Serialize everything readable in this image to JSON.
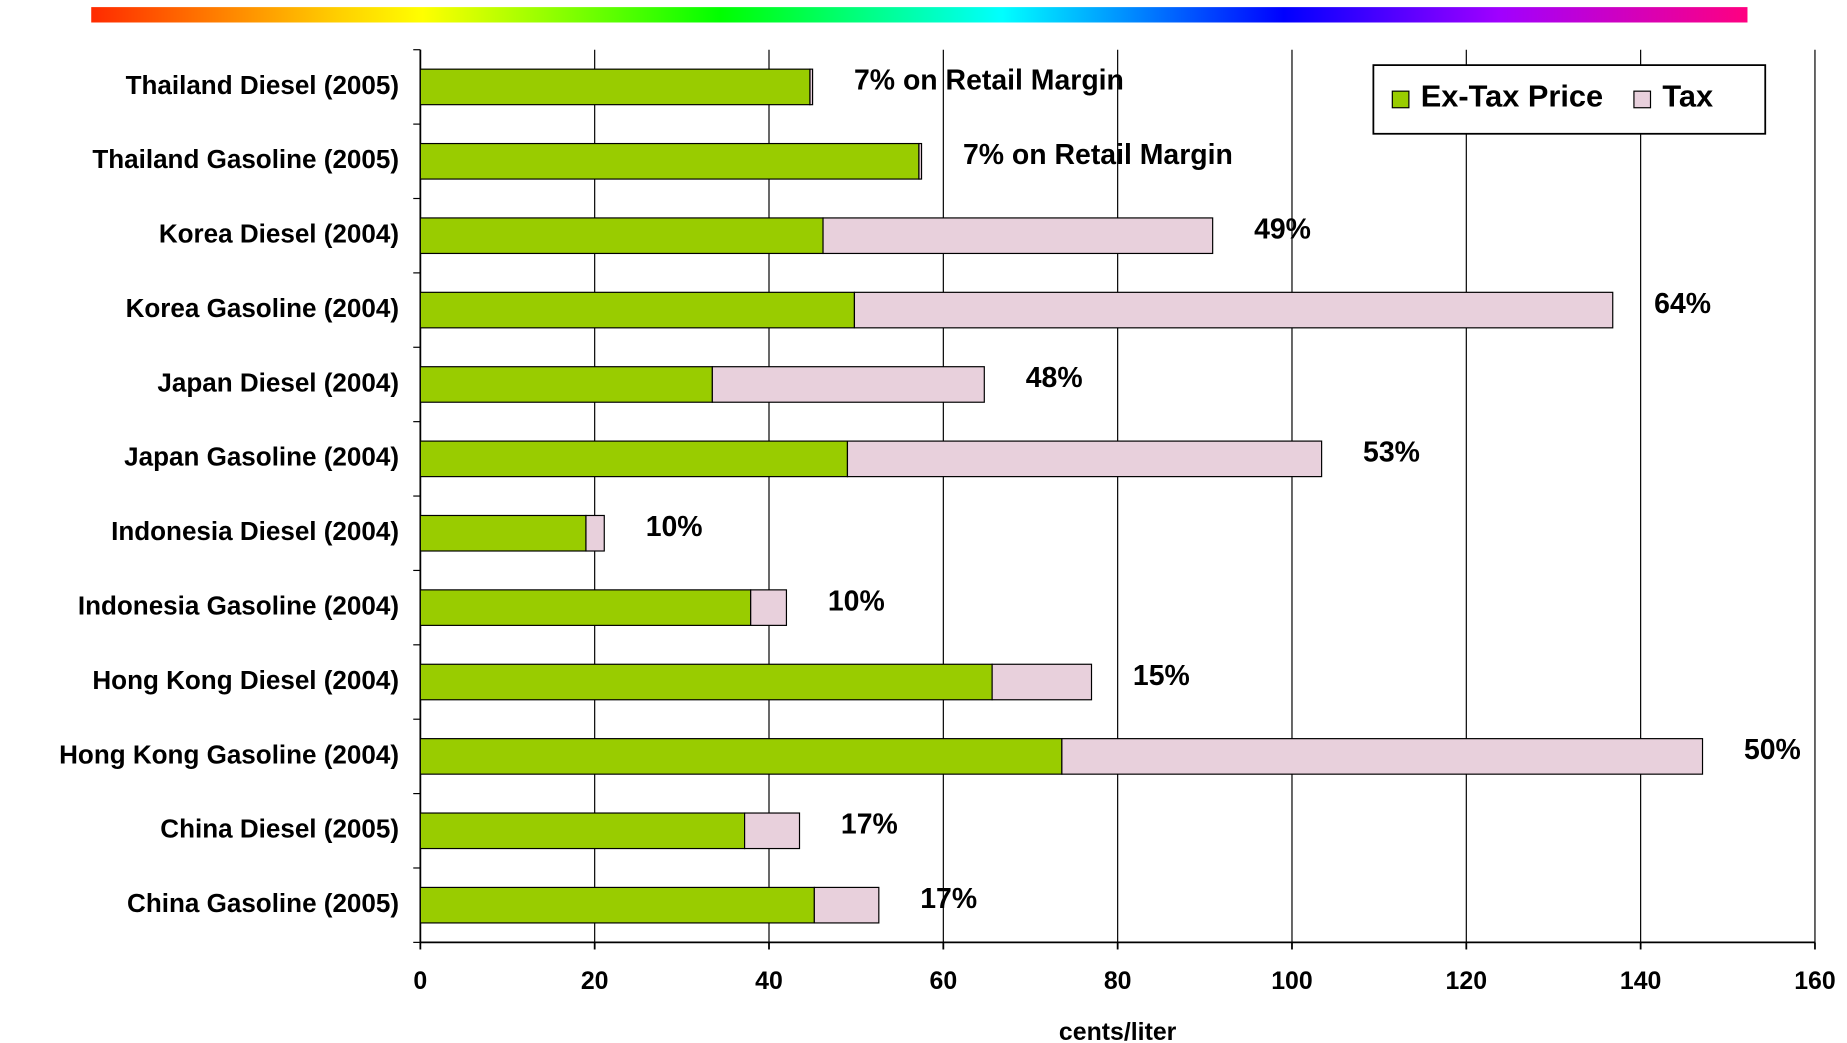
{
  "chart_data": {
    "type": "stacked_barh",
    "categories": [
      "Thailand Diesel (2005)",
      "Thailand Gasoline (2005)",
      "Korea Diesel (2004)",
      "Korea Gasoline (2004)",
      "Japan Diesel (2004)",
      "Japan Gasoline (2004)",
      "Indonesia Diesel (2004)",
      "Indonesia Gasoline (2004)",
      "Hong Kong Diesel (2004)",
      "Hong Kong Gasoline (2004)",
      "China Diesel (2005)",
      "China Gasoline (2005)"
    ],
    "series": [
      {
        "name": "Ex-Tax Price",
        "color": "#99cc00",
        "values": [
          44.7,
          57.2,
          46.2,
          49.8,
          33.5,
          49.0,
          19.0,
          37.9,
          65.6,
          73.6,
          37.2,
          45.2
        ]
      },
      {
        "name": "Tax",
        "color": "#e8d0dc",
        "values": [
          0.3,
          0.3,
          44.7,
          87.0,
          31.2,
          54.4,
          2.1,
          4.1,
          11.4,
          73.5,
          6.3,
          7.4
        ]
      }
    ],
    "annotations": [
      "7% on Retail Margin",
      "7% on Retail Margin",
      "49%",
      "64%",
      "48%",
      "53%",
      "10%",
      "10%",
      "15%",
      "50%",
      "17%",
      "17%"
    ],
    "xlabel": "cents/liter",
    "xlim": [
      0,
      160
    ],
    "xticks": [
      0,
      20,
      40,
      60,
      80,
      100,
      120,
      140,
      160
    ],
    "grid": true,
    "legend": "upper right"
  }
}
